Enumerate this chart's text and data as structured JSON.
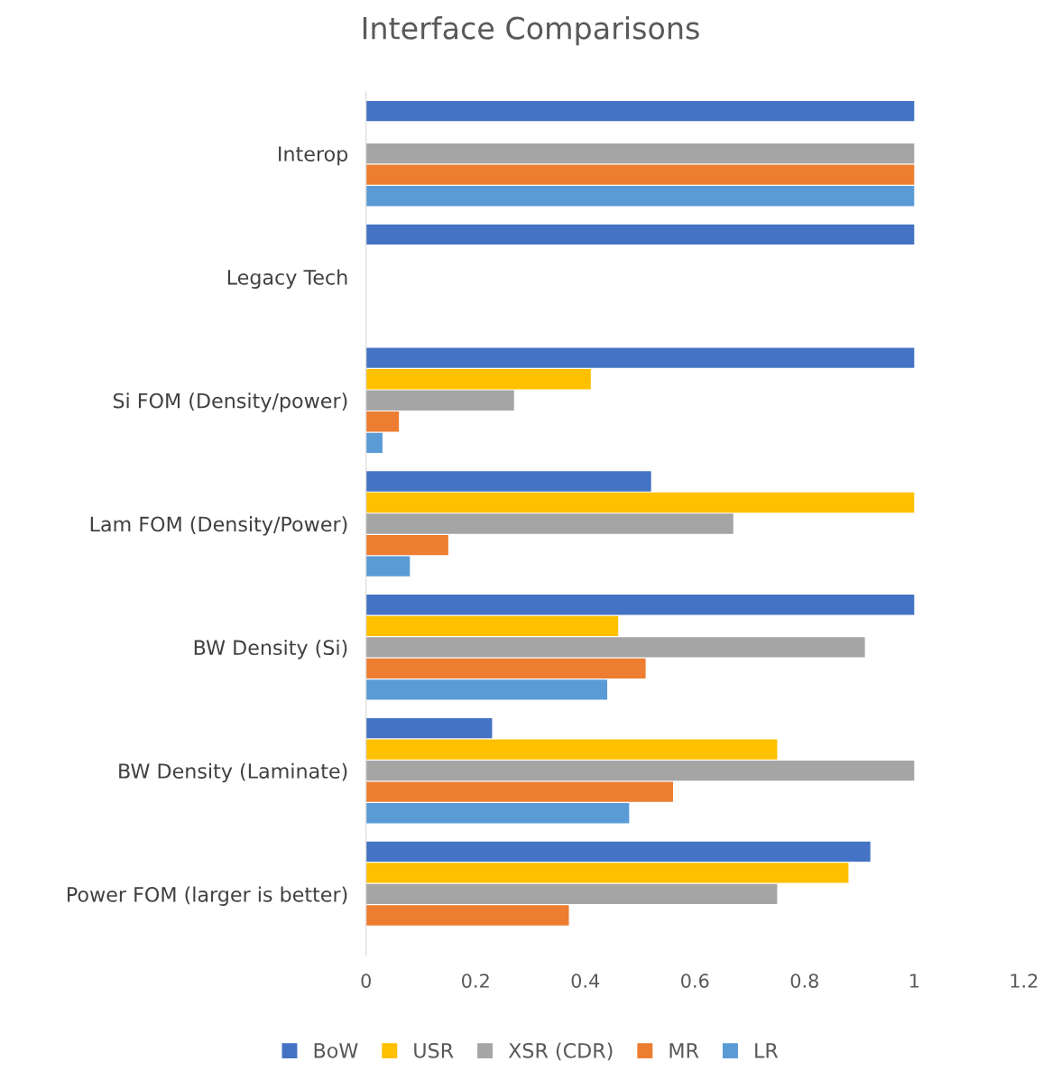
{
  "chart_data": {
    "type": "bar",
    "orientation": "horizontal",
    "title": "Interface Comparisons",
    "categories": [
      "Interop",
      "Legacy Tech",
      "Si FOM (Density/power)",
      "Lam FOM (Density/Power)",
      "BW Density (Si)",
      "BW Density (Laminate)",
      "Power FOM (larger is better)"
    ],
    "series": [
      {
        "name": "BoW",
        "color": "#4472c4",
        "values": [
          1,
          1,
          1,
          0.52,
          1,
          0.23,
          0.92
        ]
      },
      {
        "name": "USR",
        "color": "#ffc000",
        "values": [
          null,
          null,
          0.41,
          1,
          0.46,
          0.75,
          0.88
        ]
      },
      {
        "name": "XSR (CDR)",
        "color": "#a5a5a5",
        "values": [
          1,
          null,
          0.27,
          0.67,
          0.91,
          1,
          0.75
        ]
      },
      {
        "name": "MR",
        "color": "#ed7d31",
        "values": [
          1,
          null,
          0.06,
          0.15,
          0.51,
          0.56,
          0.37
        ]
      },
      {
        "name": "LR",
        "color": "#5b9bd5",
        "values": [
          1,
          null,
          0.03,
          0.08,
          0.44,
          0.48,
          null
        ]
      }
    ],
    "xlim": [
      0,
      1.2
    ],
    "xticks": [
      0,
      0.2,
      0.4,
      0.6,
      0.8,
      1,
      1.2
    ],
    "grid": false,
    "legend": "bottom"
  }
}
